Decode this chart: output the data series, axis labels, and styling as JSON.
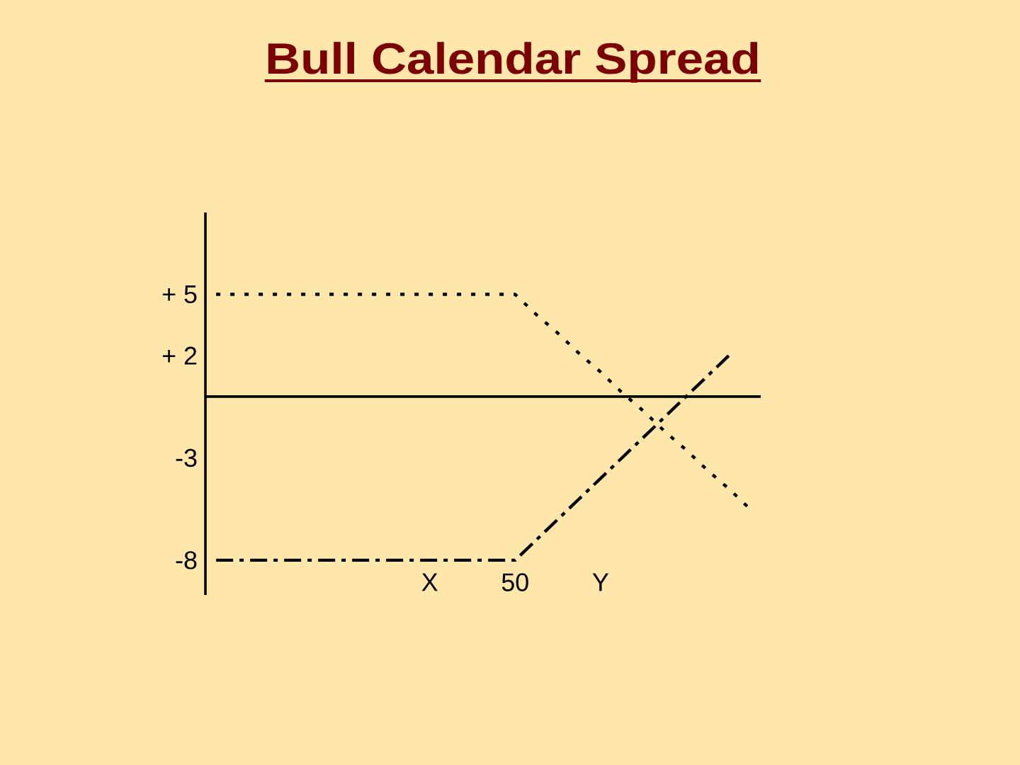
{
  "chart_data": {
    "type": "line",
    "title": "Bull Calendar Spread",
    "categories": [
      null,
      null,
      null,
      null,
      null,
      null,
      null,
      null,
      null,
      null,
      "X",
      null,
      null,
      null,
      "50",
      null,
      null,
      null,
      "Y",
      null,
      null,
      null,
      null,
      null,
      null,
      null
    ],
    "series": [
      {
        "color": "#000000",
        "line_style": "dotted",
        "values": [
          5,
          5,
          5,
          5,
          5,
          5,
          5,
          5,
          5,
          5,
          5,
          5,
          5,
          5,
          5,
          4.0,
          3.1,
          2.1,
          1.2,
          0.2,
          -0.7,
          -1.7,
          -2.6,
          -3.6,
          -4.5,
          -5.5
        ]
      },
      {
        "color": "#000000",
        "line_style": "dashdot",
        "values": [
          -8,
          -8,
          -8,
          -8,
          -8,
          -8,
          -8,
          -8,
          -8,
          -8,
          -8,
          -8,
          -8,
          -8,
          -8,
          -7,
          -6,
          -5,
          -4,
          -3,
          -2,
          -1,
          0,
          1,
          2,
          null
        ]
      }
    ],
    "ylim": [
      -9.7,
      9
    ],
    "yticks": [
      {
        "value": 5,
        "label": "+ 5"
      },
      {
        "value": 2,
        "label": "+ 2"
      },
      -3,
      -8
    ],
    "ref_lines": [
      {
        "axis": "y",
        "value": 0,
        "color": "#000000"
      }
    ]
  }
}
